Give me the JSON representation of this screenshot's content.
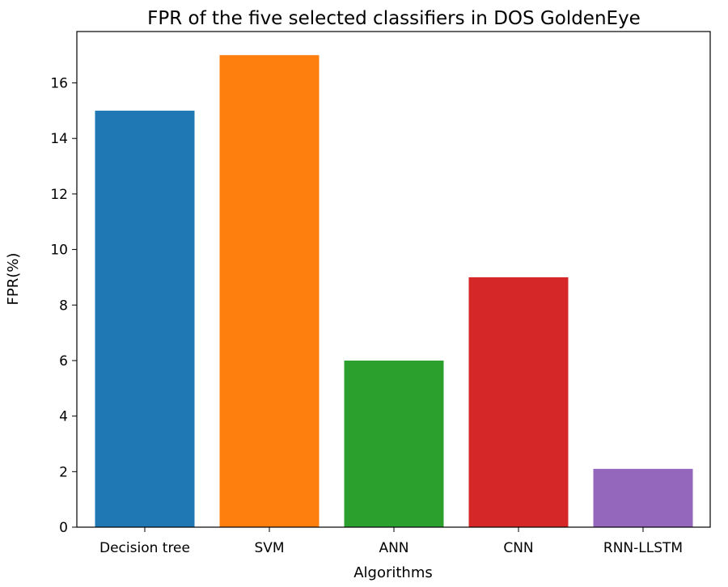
{
  "chart_data": {
    "type": "bar",
    "title": "FPR of the five selected classifiers in DOS GoldenEye",
    "xlabel": "Algorithms",
    "ylabel": "FPR(%)",
    "categories": [
      "Decision tree",
      "SVM",
      "ANN",
      "CNN",
      "RNN-LLSTM"
    ],
    "values": [
      15,
      17,
      6,
      9,
      2.1
    ],
    "colors": [
      "#1f77b4",
      "#ff7f0e",
      "#2ca02c",
      "#d62728",
      "#9467bd"
    ],
    "yticks": [
      0,
      2,
      4,
      6,
      8,
      10,
      12,
      14,
      16
    ],
    "ylim": [
      0,
      17.85
    ],
    "grid": false,
    "legend": "none"
  }
}
